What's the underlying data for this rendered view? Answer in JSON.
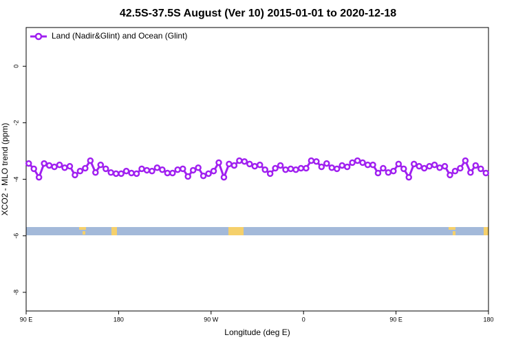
{
  "chart_data": {
    "type": "line",
    "title": "42.5S-37.5S August (Ver 10)   2015-01-01 to 2020-12-18",
    "x_label": "Longitude (deg E)",
    "y_label": "XCO2 - MLO trend (ppm)",
    "legend": "top-left",
    "x": [
      92.5,
      97.5,
      102.5,
      107.5,
      112.5,
      117.5,
      122.5,
      127.5,
      132.5,
      137.5,
      142.5,
      147.5,
      152.5,
      157.5,
      162.5,
      167.5,
      172.5,
      177.5,
      182.5,
      187.5,
      192.5,
      197.5,
      202.5,
      207.5,
      212.5,
      217.5,
      222.5,
      227.5,
      232.5,
      237.5,
      242.5,
      247.5,
      252.5,
      257.5,
      262.5,
      267.5,
      272.5,
      277.5,
      282.5,
      287.5,
      292.5,
      297.5,
      302.5,
      307.5,
      312.5,
      317.5,
      322.5,
      327.5,
      332.5,
      337.5,
      342.5,
      347.5,
      352.5,
      357.5,
      362.5,
      367.5,
      372.5,
      377.5,
      382.5,
      387.5,
      392.5,
      397.5,
      402.5,
      407.5,
      412.5,
      417.5,
      422.5,
      427.5,
      432.5,
      437.5,
      442.5,
      447.5,
      452.5,
      457.5,
      462.5,
      467.5,
      472.5,
      477.5,
      482.5,
      487.5,
      492.5,
      497.5,
      502.5,
      507.5,
      512.5,
      517.5,
      522.5,
      527.5,
      532.5,
      537.5
    ],
    "series": [
      {
        "name": "Land (Nadir&Glint) and Ocean (Glint)",
        "color": "#a020f0",
        "values": [
          -3.44,
          -3.63,
          -3.93,
          -3.44,
          -3.51,
          -3.56,
          -3.49,
          -3.59,
          -3.54,
          -3.85,
          -3.71,
          -3.61,
          -3.34,
          -3.76,
          -3.49,
          -3.63,
          -3.76,
          -3.8,
          -3.8,
          -3.71,
          -3.78,
          -3.8,
          -3.63,
          -3.68,
          -3.71,
          -3.59,
          -3.66,
          -3.78,
          -3.78,
          -3.66,
          -3.63,
          -3.9,
          -3.68,
          -3.59,
          -3.88,
          -3.8,
          -3.71,
          -3.41,
          -3.93,
          -3.46,
          -3.51,
          -3.34,
          -3.37,
          -3.46,
          -3.54,
          -3.49,
          -3.66,
          -3.8,
          -3.61,
          -3.51,
          -3.66,
          -3.63,
          -3.66,
          -3.61,
          -3.61,
          -3.34,
          -3.37,
          -3.56,
          -3.44,
          -3.59,
          -3.63,
          -3.51,
          -3.56,
          -3.41,
          -3.34,
          -3.41,
          -3.49,
          -3.49,
          -3.78,
          -3.61,
          -3.76,
          -3.71,
          -3.46,
          -3.63,
          -3.93,
          -3.46,
          -3.54,
          -3.61,
          -3.54,
          -3.49,
          -3.59,
          -3.54,
          -3.85,
          -3.71,
          -3.61,
          -3.34,
          -3.76,
          -3.51,
          -3.63,
          -3.78
        ]
      }
    ],
    "xlim": [
      90,
      540
    ],
    "xticks": [
      {
        "value": 90,
        "label": "90 E"
      },
      180,
      {
        "value": 270,
        "label": "90 W"
      },
      {
        "value": 360,
        "label": "0"
      },
      {
        "value": 450,
        "label": "90 E"
      },
      {
        "value": 540,
        "label": "180"
      }
    ],
    "ylim": [
      -8.66,
      1.37
    ],
    "yticks": [
      0,
      -2,
      -4,
      -6,
      -8
    ]
  }
}
